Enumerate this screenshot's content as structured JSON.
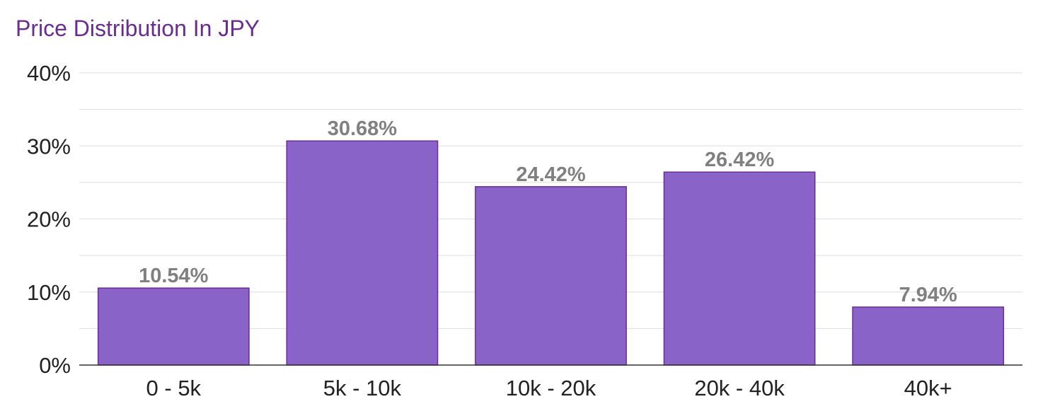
{
  "chart_data": {
    "type": "bar",
    "title": "Price Distribution In JPY",
    "categories": [
      "0 - 5k",
      "5k - 10k",
      "10k - 20k",
      "20k - 40k",
      "40k+"
    ],
    "values": [
      10.54,
      30.68,
      24.42,
      26.42,
      7.94
    ],
    "value_labels": [
      "10.54%",
      "30.68%",
      "24.42%",
      "26.42%",
      "7.94%"
    ],
    "y_ticks": [
      0,
      10,
      20,
      30,
      40
    ],
    "y_tick_labels": [
      "0%",
      "10%",
      "20%",
      "30%",
      "40%"
    ],
    "ylim": [
      0,
      40
    ],
    "grid": true,
    "xlabel": "",
    "ylabel": "",
    "bar_color": "#8a63c9",
    "bar_border_color": "#6a2c91",
    "title_color": "#6a2c91",
    "value_label_color": "#808080"
  }
}
